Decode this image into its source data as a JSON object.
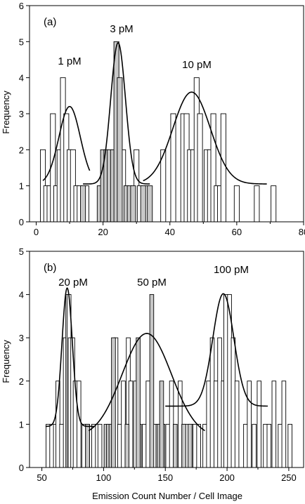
{
  "chart_data": [
    {
      "type": "bar",
      "panel_label": "(a)",
      "xlabel": "",
      "ylabel": "Frequency",
      "xlim": [
        -2,
        80
      ],
      "ylim": [
        0,
        6
      ],
      "x_ticks": [
        "0",
        "20",
        "40",
        "60",
        "80"
      ],
      "y_ticks": [
        "0",
        "1",
        "2",
        "3",
        "4",
        "5",
        "6"
      ],
      "bar_width": 1.5,
      "annotations": [
        "1 pM",
        "3 pM",
        "10 pM"
      ],
      "series": [
        {
          "fill": "#ffffff",
          "bars": [
            [
              2,
              2
            ],
            [
              3,
              1
            ],
            [
              4,
              1
            ],
            [
              5,
              3
            ],
            [
              6,
              1
            ],
            [
              7,
              2
            ],
            [
              8,
              4
            ],
            [
              9,
              3
            ],
            [
              10,
              2
            ],
            [
              11,
              2
            ],
            [
              12,
              1
            ],
            [
              13,
              1
            ],
            [
              15,
              1
            ],
            [
              26,
              2
            ],
            [
              30,
              2
            ],
            [
              31,
              1
            ],
            [
              33,
              1
            ],
            [
              38,
              2
            ],
            [
              41,
              3
            ],
            [
              44,
              3
            ],
            [
              45,
              3
            ],
            [
              46,
              2
            ],
            [
              47,
              2
            ],
            [
              48,
              4
            ],
            [
              49,
              3
            ],
            [
              51,
              2
            ],
            [
              52,
              2
            ],
            [
              53,
              3
            ],
            [
              54,
              1
            ],
            [
              55,
              1
            ],
            [
              56,
              3
            ],
            [
              60,
              1
            ],
            [
              66,
              1
            ],
            [
              71,
              1
            ]
          ]
        },
        {
          "fill": "#c8c8c8",
          "bars": [
            [
              14,
              1
            ],
            [
              19,
              1
            ],
            [
              20,
              2
            ],
            [
              21,
              2
            ],
            [
              22,
              2
            ],
            [
              23,
              2
            ],
            [
              24,
              5
            ],
            [
              25,
              4
            ],
            [
              27,
              1
            ],
            [
              28,
              1
            ],
            [
              29,
              1
            ],
            [
              32,
              1
            ],
            [
              34,
              1
            ]
          ]
        }
      ],
      "curves": [
        {
          "label": "1 pM",
          "x_range": [
            2,
            16
          ],
          "mu": 10,
          "sigma": 3.2,
          "amp": 2.15,
          "base": 1.05
        },
        {
          "label": "3 pM",
          "x_range": [
            14,
            34
          ],
          "mu": 24.5,
          "sigma": 2.2,
          "amp": 3.92,
          "base": 1.05
        },
        {
          "label": "10 pM",
          "x_range": [
            32,
            69
          ],
          "mu": 46.5,
          "sigma": 5.6,
          "amp": 2.55,
          "base": 1.05
        }
      ]
    },
    {
      "type": "bar",
      "panel_label": "(b)",
      "xlabel": "Emission Count Number / Cell Image",
      "ylabel": "Frequency",
      "xlim": [
        40,
        262
      ],
      "ylim": [
        0,
        5
      ],
      "x_ticks": [
        "50",
        "100",
        "150",
        "200",
        "250"
      ],
      "y_ticks": [
        "0",
        "1",
        "2",
        "3",
        "4",
        "5"
      ],
      "bar_width": 3.2,
      "annotations": [
        "20 pM",
        "50 pM",
        "100 pM"
      ],
      "series": [
        {
          "fill": "#ffffff",
          "bars": [
            [
              55,
              1
            ],
            [
              58,
              1
            ],
            [
              61,
              1
            ],
            [
              63,
              2
            ],
            [
              66,
              1
            ],
            [
              69,
              3
            ],
            [
              71,
              4
            ],
            [
              72,
              4
            ],
            [
              73,
              3
            ],
            [
              75,
              3
            ],
            [
              77,
              2
            ],
            [
              80,
              2
            ],
            [
              84,
              1
            ],
            [
              87,
              1
            ],
            [
              92,
              1
            ],
            [
              95,
              1
            ],
            [
              97,
              1
            ],
            [
              110,
              3
            ],
            [
              113,
              1
            ],
            [
              116,
              2
            ],
            [
              120,
              3
            ],
            [
              122,
              2
            ],
            [
              126,
              2
            ],
            [
              129,
              1
            ],
            [
              133,
              1
            ],
            [
              136,
              2
            ],
            [
              141,
              1
            ],
            [
              144,
              1
            ],
            [
              148,
              1
            ],
            [
              152,
              1
            ],
            [
              155,
              2
            ],
            [
              162,
              2
            ],
            [
              165,
              1
            ],
            [
              168,
              1
            ],
            [
              171,
              1
            ],
            [
              174,
              1
            ],
            [
              177,
              1
            ],
            [
              182,
              1
            ],
            [
              185,
              2
            ],
            [
              188,
              3
            ],
            [
              191,
              2
            ],
            [
              194,
              3
            ],
            [
              197,
              2
            ],
            [
              199,
              4
            ],
            [
              202,
              4
            ],
            [
              205,
              3
            ],
            [
              208,
              2
            ],
            [
              215,
              1
            ],
            [
              218,
              2
            ],
            [
              222,
              1
            ],
            [
              226,
              2
            ],
            [
              231,
              1
            ],
            [
              234,
              1
            ],
            [
              238,
              2
            ],
            [
              243,
              1
            ],
            [
              246,
              2
            ],
            [
              251,
              1
            ]
          ]
        },
        {
          "fill": "#c8c8c8",
          "bars": [
            [
              87,
              1
            ],
            [
              102,
              1
            ],
            [
              104,
              1
            ],
            [
              106,
              1
            ],
            [
              108,
              3
            ],
            [
              119,
              1
            ],
            [
              128,
              3
            ],
            [
              139,
              4
            ],
            [
              145,
              1
            ],
            [
              147,
              2
            ],
            [
              158,
              1
            ],
            [
              165,
              1
            ],
            [
              170,
              1
            ]
          ]
        }
      ],
      "curves": [
        {
          "label": "20 pM",
          "x_range": [
            53,
            92
          ],
          "mu": 70.5,
          "sigma": 4.2,
          "amp": 3.2,
          "base": 0.95
        },
        {
          "label": "50 pM",
          "x_range": [
            88,
            182
          ],
          "mu": 135,
          "sigma": 20,
          "amp": 2.4,
          "base": 0.7
        },
        {
          "label": "100 pM",
          "x_range": [
            150,
            233
          ],
          "mu": 197,
          "sigma": 8.5,
          "amp": 2.6,
          "base": 1.42
        }
      ]
    }
  ]
}
